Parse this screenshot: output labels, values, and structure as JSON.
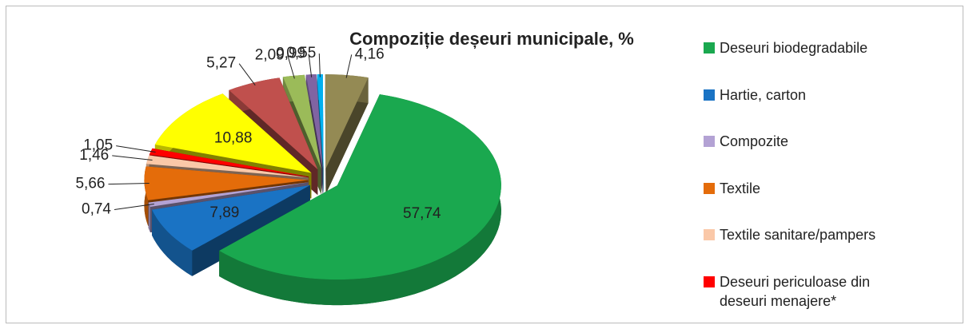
{
  "chart_data": {
    "type": "pie",
    "title": "Compoziție deșeuri municipale, %",
    "categories": [
      "Deseuri biodegradabile",
      "Hartie, carton",
      "Compozite",
      "Textile",
      "Textile sanitare/pampers",
      "Deseuri periculoase din deseuri menajere*",
      null,
      null,
      null,
      null,
      null,
      null
    ],
    "values": [
      57.74,
      7.89,
      0.74,
      5.66,
      1.46,
      1.05,
      10.88,
      5.27,
      2.09,
      0.99,
      0.55,
      4.16
    ],
    "value_labels": [
      "57,74",
      "7,89",
      "0,74",
      "5,66",
      "1,46",
      "1,05",
      "10,88",
      "5,27",
      "2,09",
      "0,99",
      "0,55",
      "4,16"
    ],
    "colors": [
      "#1aa84f",
      "#1a73c4",
      "#b3a2d4",
      "#e46c0a",
      "#fac8a8",
      "#ff0000",
      "#ffff00",
      "#c0504d",
      "#9bbb59",
      "#8064a2",
      "#00b0f0",
      "#948a54"
    ],
    "legend": "right"
  }
}
